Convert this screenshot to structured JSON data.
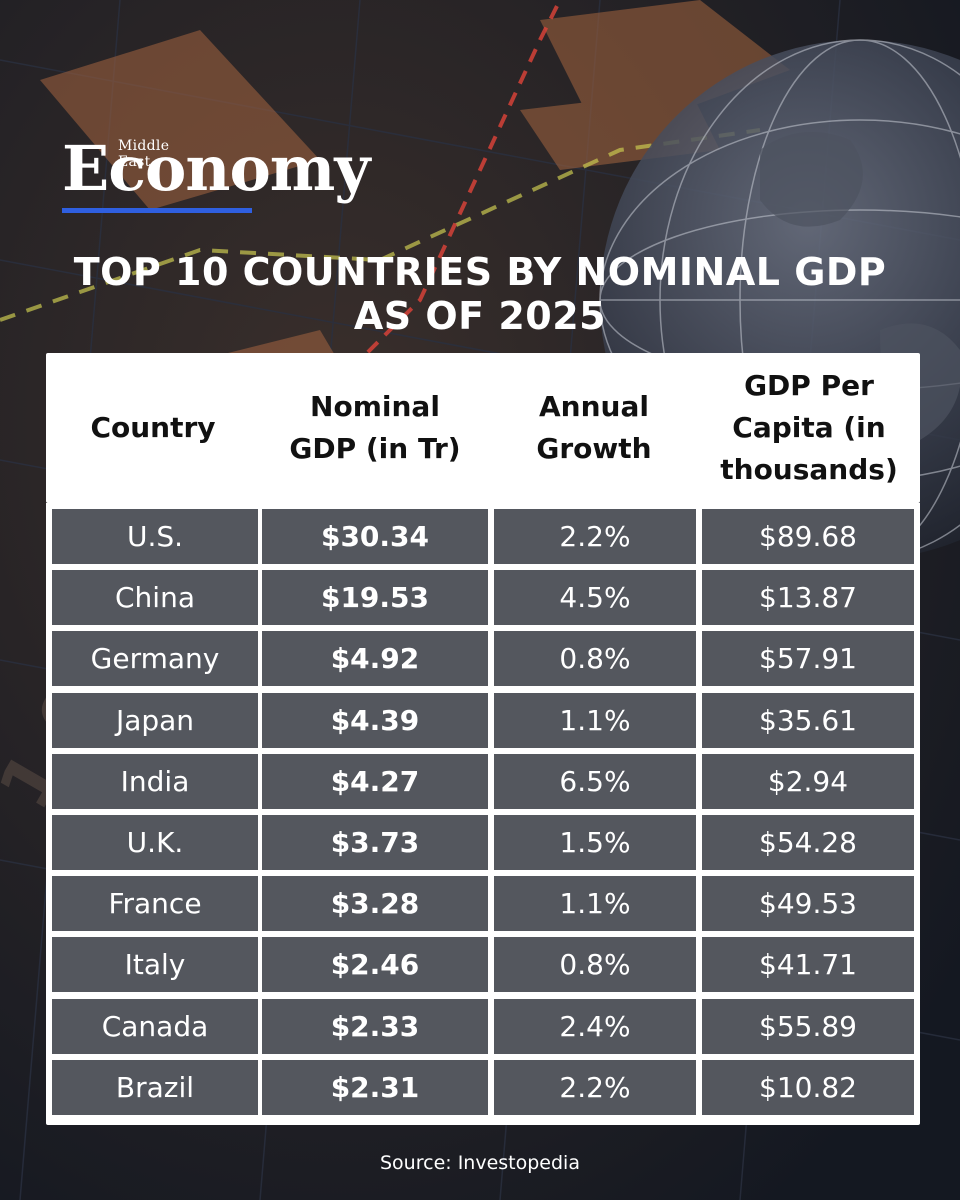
{
  "brand": {
    "tagline": "Middle East",
    "name": "Economy",
    "accent_color": "#2f5fe0"
  },
  "title": {
    "line1": "TOP 10 COUNTRIES BY NOMINAL GDP",
    "line2": "AS OF 2025"
  },
  "chart_data": {
    "type": "table",
    "title": "TOP 10 COUNTRIES BY NOMINAL GDP AS OF 2025",
    "columns": [
      "Country",
      "Nominal GDP (in Tr)",
      "Annual Growth",
      "GDP Per Capita (in thousands)"
    ],
    "rows": [
      {
        "country": "U.S.",
        "gdp": "$30.34",
        "growth": "2.2%",
        "per_capita": "$89.68"
      },
      {
        "country": "China",
        "gdp": "$19.53",
        "growth": "4.5%",
        "per_capita": "$13.87"
      },
      {
        "country": "Germany",
        "gdp": "$4.92",
        "growth": "0.8%",
        "per_capita": "$57.91"
      },
      {
        "country": "Japan",
        "gdp": "$4.39",
        "growth": "1.1%",
        "per_capita": "$35.61"
      },
      {
        "country": "India",
        "gdp": "$4.27",
        "growth": "6.5%",
        "per_capita": "$2.94"
      },
      {
        "country": "U.K.",
        "gdp": "$3.73",
        "growth": "1.5%",
        "per_capita": "$54.28"
      },
      {
        "country": "France",
        "gdp": "$3.28",
        "growth": "1.1%",
        "per_capita": "$49.53"
      },
      {
        "country": "Italy",
        "gdp": "$2.46",
        "growth": "0.8%",
        "per_capita": "$41.71"
      },
      {
        "country": "Canada",
        "gdp": "$2.33",
        "growth": "2.4%",
        "per_capita": "$55.89"
      },
      {
        "country": "Brazil",
        "gdp": "$2.31",
        "growth": "2.2%",
        "per_capita": "$10.82"
      }
    ]
  },
  "table_header": {
    "country": "Country",
    "gdp": "Nominal\nGDP (in Tr)",
    "growth": "Annual\nGrowth",
    "per_capita": "GDP Per\nCapita (in\nthousands)"
  },
  "source": "Source: Investopedia"
}
